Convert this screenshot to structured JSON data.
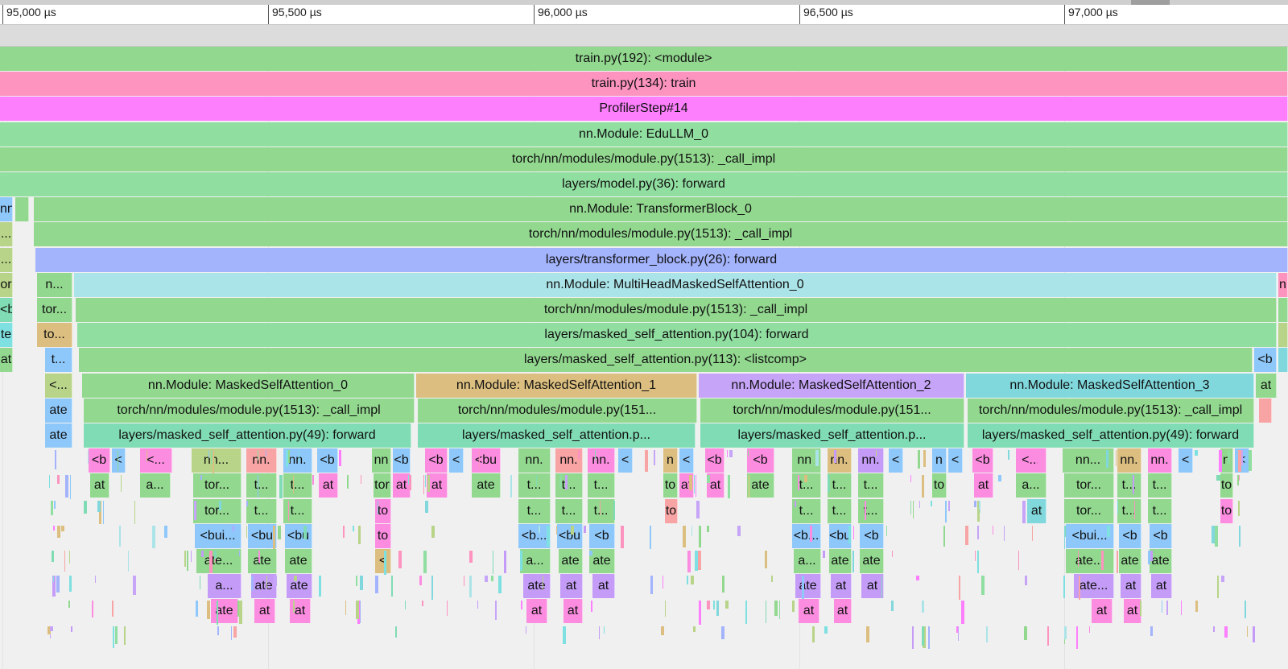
{
  "ruler": {
    "ticks": [
      "95,000 µs",
      "95,500 µs",
      "96,000 µs",
      "96,500 µs",
      "97,000 µs"
    ]
  },
  "colors": {
    "green": "#92d88f",
    "pink": "#fd93bf",
    "magenta": "#fd7ffd",
    "lightgreen": "#90dea0",
    "blue": "#a3b3fc",
    "cyan": "#abe4e8",
    "tan": "#dcbf80",
    "purple": "#c6a4f8",
    "teal": "#80d8dc",
    "mint": "#80dcb4",
    "sky": "#8ec8fa",
    "lime": "#b8d488",
    "salmon": "#f8a4a4",
    "hotpink": "#fb8ce0",
    "violet": "#c49cf8",
    "aqua": "#7ee0e0"
  },
  "flame": [
    {
      "row": 0,
      "l": 0,
      "r": 1600,
      "c": "green",
      "t": "train.py(192): <module>"
    },
    {
      "row": 1,
      "l": 0,
      "r": 1600,
      "c": "pink",
      "t": "train.py(134): train"
    },
    {
      "row": 2,
      "l": 0,
      "r": 1600,
      "c": "magenta",
      "t": "ProfilerStep#14"
    },
    {
      "row": 3,
      "l": 0,
      "r": 1600,
      "c": "lightgreen",
      "t": "nn.Module: EduLLM_0"
    },
    {
      "row": 4,
      "l": 0,
      "r": 1600,
      "c": "green",
      "t": "torch/nn/modules/module.py(1513): _call_impl"
    },
    {
      "row": 5,
      "l": 0,
      "r": 1600,
      "c": "lightgreen",
      "t": "layers/model.py(36): forward"
    },
    {
      "row": 6,
      "l": 0,
      "r": 16,
      "c": "sky",
      "t": "nn."
    },
    {
      "row": 6,
      "l": 19,
      "r": 36,
      "c": "green",
      "t": ""
    },
    {
      "row": 6,
      "l": 42,
      "r": 1600,
      "c": "green",
      "t": "nn.Module: TransformerBlock_0"
    },
    {
      "row": 7,
      "l": 0,
      "r": 16,
      "c": "lime",
      "t": "..."
    },
    {
      "row": 7,
      "l": 42,
      "r": 1600,
      "c": "green",
      "t": "torch/nn/modules/module.py(1513): _call_impl"
    },
    {
      "row": 8,
      "l": 0,
      "r": 16,
      "c": "lime",
      "t": "..."
    },
    {
      "row": 8,
      "l": 44,
      "r": 1600,
      "c": "blue",
      "t": "layers/transformer_block.py(26): forward"
    },
    {
      "row": 9,
      "l": 0,
      "r": 16,
      "c": "lime",
      "t": "or"
    },
    {
      "row": 9,
      "l": 46,
      "r": 90,
      "c": "green",
      "t": "n..."
    },
    {
      "row": 9,
      "l": 92,
      "r": 1586,
      "c": "cyan",
      "t": "nn.Module: MultiHeadMaskedSelfAttention_0"
    },
    {
      "row": 9,
      "l": 1588,
      "r": 1600,
      "c": "pink",
      "t": "n"
    },
    {
      "row": 10,
      "l": 0,
      "r": 16,
      "c": "mint",
      "t": "<b"
    },
    {
      "row": 10,
      "l": 46,
      "r": 90,
      "c": "green",
      "t": "tor..."
    },
    {
      "row": 10,
      "l": 94,
      "r": 1586,
      "c": "green",
      "t": "torch/nn/modules/module.py(1513): _call_impl"
    },
    {
      "row": 10,
      "l": 1588,
      "r": 1600,
      "c": "green",
      "t": ""
    },
    {
      "row": 11,
      "l": 0,
      "r": 16,
      "c": "aqua",
      "t": "te"
    },
    {
      "row": 11,
      "l": 46,
      "r": 90,
      "c": "tan",
      "t": "to..."
    },
    {
      "row": 11,
      "l": 96,
      "r": 1586,
      "c": "lightgreen",
      "t": "layers/masked_self_attention.py(104): forward"
    },
    {
      "row": 11,
      "l": 1588,
      "r": 1600,
      "c": "lime",
      "t": ""
    },
    {
      "row": 12,
      "l": 0,
      "r": 16,
      "c": "green",
      "t": "at"
    },
    {
      "row": 12,
      "l": 56,
      "r": 90,
      "c": "sky",
      "t": "t..."
    },
    {
      "row": 12,
      "l": 98,
      "r": 1556,
      "c": "green",
      "t": "layers/masked_self_attention.py(113): <listcomp>"
    },
    {
      "row": 12,
      "l": 1558,
      "r": 1586,
      "c": "sky",
      "t": "<b"
    },
    {
      "row": 12,
      "l": 1588,
      "r": 1600,
      "c": "teal",
      "t": ""
    },
    {
      "row": 13,
      "l": 56,
      "r": 90,
      "c": "lime",
      "t": "<..."
    },
    {
      "row": 13,
      "l": 102,
      "r": 515,
      "c": "green",
      "t": "nn.Module: MaskedSelfAttention_0"
    },
    {
      "row": 13,
      "l": 517,
      "r": 866,
      "c": "tan",
      "t": "nn.Module: MaskedSelfAttention_1"
    },
    {
      "row": 13,
      "l": 868,
      "r": 1198,
      "c": "purple",
      "t": "nn.Module: MaskedSelfAttention_2"
    },
    {
      "row": 13,
      "l": 1200,
      "r": 1558,
      "c": "teal",
      "t": "nn.Module: MaskedSelfAttention_3"
    },
    {
      "row": 13,
      "l": 1560,
      "r": 1586,
      "c": "green",
      "t": "at"
    },
    {
      "row": 14,
      "l": 56,
      "r": 90,
      "c": "sky",
      "t": "ate"
    },
    {
      "row": 14,
      "l": 104,
      "r": 515,
      "c": "green",
      "t": "torch/nn/modules/module.py(1513): _call_impl"
    },
    {
      "row": 14,
      "l": 519,
      "r": 866,
      "c": "green",
      "t": "torch/nn/modules/module.py(151..."
    },
    {
      "row": 14,
      "l": 870,
      "r": 1198,
      "c": "green",
      "t": "torch/nn/modules/module.py(151..."
    },
    {
      "row": 14,
      "l": 1202,
      "r": 1558,
      "c": "green",
      "t": "torch/nn/modules/module.py(1513): _call_impl"
    },
    {
      "row": 14,
      "l": 1564,
      "r": 1580,
      "c": "salmon",
      "t": ""
    },
    {
      "row": 15,
      "l": 56,
      "r": 90,
      "c": "sky",
      "t": "ate"
    },
    {
      "row": 15,
      "l": 104,
      "r": 511,
      "c": "mint",
      "t": "layers/masked_self_attention.py(49): forward"
    },
    {
      "row": 15,
      "l": 519,
      "r": 864,
      "c": "mint",
      "t": "layers/masked_self_attention.p..."
    },
    {
      "row": 15,
      "l": 870,
      "r": 1198,
      "c": "mint",
      "t": "layers/masked_self_attention.p..."
    },
    {
      "row": 15,
      "l": 1202,
      "r": 1558,
      "c": "mint",
      "t": "layers/masked_self_attention.py(49): forward"
    },
    {
      "row": 16,
      "l": 110,
      "r": 137,
      "c": "hotpink",
      "t": "<b"
    },
    {
      "row": 16,
      "l": 139,
      "r": 156,
      "c": "sky",
      "t": "<"
    },
    {
      "row": 16,
      "l": 174,
      "r": 214,
      "c": "hotpink",
      "t": "<..."
    },
    {
      "row": 16,
      "l": 238,
      "r": 300,
      "c": "lime",
      "t": "nn..."
    },
    {
      "row": 16,
      "l": 306,
      "r": 344,
      "c": "salmon",
      "t": "nn."
    },
    {
      "row": 16,
      "l": 352,
      "r": 388,
      "c": "sky",
      "t": "nn."
    },
    {
      "row": 16,
      "l": 394,
      "r": 420,
      "c": "sky",
      "t": "<b"
    },
    {
      "row": 16,
      "l": 462,
      "r": 486,
      "c": "green",
      "t": "nn"
    },
    {
      "row": 16,
      "l": 488,
      "r": 510,
      "c": "sky",
      "t": "<b"
    },
    {
      "row": 16,
      "l": 528,
      "r": 556,
      "c": "hotpink",
      "t": "<b"
    },
    {
      "row": 16,
      "l": 558,
      "r": 576,
      "c": "sky",
      "t": "<"
    },
    {
      "row": 16,
      "l": 586,
      "r": 622,
      "c": "hotpink",
      "t": "<bu"
    },
    {
      "row": 16,
      "l": 644,
      "r": 684,
      "c": "green",
      "t": "nn."
    },
    {
      "row": 16,
      "l": 690,
      "r": 724,
      "c": "salmon",
      "t": "nn."
    },
    {
      "row": 16,
      "l": 730,
      "r": 764,
      "c": "hotpink",
      "t": "nn."
    },
    {
      "row": 16,
      "l": 768,
      "r": 786,
      "c": "sky",
      "t": "<"
    },
    {
      "row": 16,
      "l": 824,
      "r": 842,
      "c": "tan",
      "t": "n"
    },
    {
      "row": 16,
      "l": 844,
      "r": 862,
      "c": "sky",
      "t": "<"
    },
    {
      "row": 16,
      "l": 876,
      "r": 900,
      "c": "hotpink",
      "t": "<b"
    },
    {
      "row": 16,
      "l": 928,
      "r": 962,
      "c": "hotpink",
      "t": "<b"
    },
    {
      "row": 16,
      "l": 984,
      "r": 1020,
      "c": "green",
      "t": "nn."
    },
    {
      "row": 16,
      "l": 1028,
      "r": 1058,
      "c": "tan",
      "t": "nn."
    },
    {
      "row": 16,
      "l": 1066,
      "r": 1098,
      "c": "violet",
      "t": "nn."
    },
    {
      "row": 16,
      "l": 1104,
      "r": 1122,
      "c": "sky",
      "t": "<"
    },
    {
      "row": 16,
      "l": 1158,
      "r": 1176,
      "c": "sky",
      "t": "n"
    },
    {
      "row": 16,
      "l": 1178,
      "r": 1196,
      "c": "sky",
      "t": "<"
    },
    {
      "row": 16,
      "l": 1208,
      "r": 1234,
      "c": "hotpink",
      "t": "<b"
    },
    {
      "row": 16,
      "l": 1262,
      "r": 1300,
      "c": "hotpink",
      "t": "<..."
    },
    {
      "row": 16,
      "l": 1320,
      "r": 1384,
      "c": "green",
      "t": "nn..."
    },
    {
      "row": 16,
      "l": 1388,
      "r": 1418,
      "c": "tan",
      "t": "nn."
    },
    {
      "row": 16,
      "l": 1426,
      "r": 1456,
      "c": "hotpink",
      "t": "nn."
    },
    {
      "row": 16,
      "l": 1464,
      "r": 1482,
      "c": "sky",
      "t": "<"
    },
    {
      "row": 16,
      "l": 1516,
      "r": 1532,
      "c": "green",
      "t": "n"
    },
    {
      "row": 16,
      "l": 1534,
      "r": 1552,
      "c": "sky",
      "t": "<"
    },
    {
      "row": 17,
      "l": 112,
      "r": 136,
      "c": "green",
      "t": "at"
    },
    {
      "row": 17,
      "l": 174,
      "r": 212,
      "c": "green",
      "t": "a..."
    },
    {
      "row": 17,
      "l": 240,
      "r": 300,
      "c": "green",
      "t": "tor..."
    },
    {
      "row": 17,
      "l": 306,
      "r": 344,
      "c": "green",
      "t": "t..."
    },
    {
      "row": 17,
      "l": 352,
      "r": 388,
      "c": "green",
      "t": "t..."
    },
    {
      "row": 17,
      "l": 396,
      "r": 420,
      "c": "hotpink",
      "t": "at"
    },
    {
      "row": 17,
      "l": 464,
      "r": 486,
      "c": "green",
      "t": "tor"
    },
    {
      "row": 17,
      "l": 488,
      "r": 510,
      "c": "hotpink",
      "t": "at"
    },
    {
      "row": 17,
      "l": 530,
      "r": 556,
      "c": "hotpink",
      "t": "at"
    },
    {
      "row": 17,
      "l": 586,
      "r": 622,
      "c": "green",
      "t": "ate"
    },
    {
      "row": 17,
      "l": 644,
      "r": 684,
      "c": "green",
      "t": "t..."
    },
    {
      "row": 17,
      "l": 690,
      "r": 724,
      "c": "green",
      "t": "t..."
    },
    {
      "row": 17,
      "l": 730,
      "r": 764,
      "c": "green",
      "t": "t..."
    },
    {
      "row": 17,
      "l": 824,
      "r": 842,
      "c": "green",
      "t": "to"
    },
    {
      "row": 17,
      "l": 844,
      "r": 862,
      "c": "hotpink",
      "t": "at"
    },
    {
      "row": 17,
      "l": 878,
      "r": 900,
      "c": "hotpink",
      "t": "at"
    },
    {
      "row": 17,
      "l": 928,
      "r": 962,
      "c": "green",
      "t": "ate"
    },
    {
      "row": 17,
      "l": 984,
      "r": 1020,
      "c": "green",
      "t": "t..."
    },
    {
      "row": 17,
      "l": 1028,
      "r": 1058,
      "c": "green",
      "t": "t..."
    },
    {
      "row": 17,
      "l": 1066,
      "r": 1098,
      "c": "green",
      "t": "t..."
    },
    {
      "row": 17,
      "l": 1158,
      "r": 1176,
      "c": "green",
      "t": "to"
    },
    {
      "row": 17,
      "l": 1210,
      "r": 1234,
      "c": "hotpink",
      "t": "at"
    },
    {
      "row": 17,
      "l": 1262,
      "r": 1300,
      "c": "green",
      "t": "a..."
    },
    {
      "row": 17,
      "l": 1322,
      "r": 1384,
      "c": "green",
      "t": "tor..."
    },
    {
      "row": 17,
      "l": 1388,
      "r": 1418,
      "c": "green",
      "t": "t..."
    },
    {
      "row": 17,
      "l": 1426,
      "r": 1456,
      "c": "green",
      "t": "t..."
    },
    {
      "row": 17,
      "l": 1516,
      "r": 1532,
      "c": "green",
      "t": "to"
    },
    {
      "row": 18,
      "l": 240,
      "r": 300,
      "c": "green",
      "t": "tor..."
    },
    {
      "row": 18,
      "l": 306,
      "r": 344,
      "c": "green",
      "t": "t..."
    },
    {
      "row": 18,
      "l": 352,
      "r": 388,
      "c": "green",
      "t": "t..."
    },
    {
      "row": 18,
      "l": 466,
      "r": 486,
      "c": "hotpink",
      "t": "to"
    },
    {
      "row": 18,
      "l": 644,
      "r": 684,
      "c": "green",
      "t": "t..."
    },
    {
      "row": 18,
      "l": 690,
      "r": 724,
      "c": "green",
      "t": "t..."
    },
    {
      "row": 18,
      "l": 730,
      "r": 764,
      "c": "green",
      "t": "t..."
    },
    {
      "row": 18,
      "l": 826,
      "r": 842,
      "c": "salmon",
      "t": "to"
    },
    {
      "row": 18,
      "l": 984,
      "r": 1020,
      "c": "green",
      "t": "t..."
    },
    {
      "row": 18,
      "l": 1028,
      "r": 1058,
      "c": "green",
      "t": "t..."
    },
    {
      "row": 18,
      "l": 1066,
      "r": 1098,
      "c": "green",
      "t": "t..."
    },
    {
      "row": 18,
      "l": 1276,
      "r": 1300,
      "c": "teal",
      "t": "at"
    },
    {
      "row": 18,
      "l": 1322,
      "r": 1384,
      "c": "green",
      "t": "tor..."
    },
    {
      "row": 18,
      "l": 1388,
      "r": 1418,
      "c": "green",
      "t": "t..."
    },
    {
      "row": 18,
      "l": 1426,
      "r": 1456,
      "c": "green",
      "t": "t..."
    },
    {
      "row": 18,
      "l": 1516,
      "r": 1532,
      "c": "hotpink",
      "t": "to"
    },
    {
      "row": 19,
      "l": 242,
      "r": 300,
      "c": "sky",
      "t": "<bui..."
    },
    {
      "row": 19,
      "l": 308,
      "r": 344,
      "c": "sky",
      "t": "<bu"
    },
    {
      "row": 19,
      "l": 354,
      "r": 388,
      "c": "sky",
      "t": "<bu"
    },
    {
      "row": 19,
      "l": 466,
      "r": 486,
      "c": "hotpink",
      "t": "to"
    },
    {
      "row": 19,
      "l": 644,
      "r": 684,
      "c": "sky",
      "t": "<b..."
    },
    {
      "row": 19,
      "l": 692,
      "r": 724,
      "c": "sky",
      "t": "<bu"
    },
    {
      "row": 19,
      "l": 732,
      "r": 764,
      "c": "sky",
      "t": "<b"
    },
    {
      "row": 19,
      "l": 984,
      "r": 1020,
      "c": "sky",
      "t": "<b..."
    },
    {
      "row": 19,
      "l": 1030,
      "r": 1058,
      "c": "sky",
      "t": "<bu"
    },
    {
      "row": 19,
      "l": 1068,
      "r": 1098,
      "c": "sky",
      "t": "<b"
    },
    {
      "row": 19,
      "l": 1324,
      "r": 1384,
      "c": "sky",
      "t": "<bui..."
    },
    {
      "row": 19,
      "l": 1390,
      "r": 1418,
      "c": "sky",
      "t": "<b"
    },
    {
      "row": 19,
      "l": 1428,
      "r": 1456,
      "c": "sky",
      "t": "<b"
    },
    {
      "row": 20,
      "l": 244,
      "r": 300,
      "c": "green",
      "t": "ate..."
    },
    {
      "row": 20,
      "l": 308,
      "r": 344,
      "c": "green",
      "t": "ate"
    },
    {
      "row": 20,
      "l": 354,
      "r": 388,
      "c": "green",
      "t": "ate"
    },
    {
      "row": 20,
      "l": 466,
      "r": 486,
      "c": "tan",
      "t": "<"
    },
    {
      "row": 20,
      "l": 646,
      "r": 684,
      "c": "green",
      "t": "a..."
    },
    {
      "row": 20,
      "l": 694,
      "r": 724,
      "c": "green",
      "t": "ate"
    },
    {
      "row": 20,
      "l": 732,
      "r": 764,
      "c": "green",
      "t": "ate"
    },
    {
      "row": 20,
      "l": 986,
      "r": 1020,
      "c": "green",
      "t": "a..."
    },
    {
      "row": 20,
      "l": 1030,
      "r": 1058,
      "c": "green",
      "t": "ate"
    },
    {
      "row": 20,
      "l": 1068,
      "r": 1098,
      "c": "green",
      "t": "ate"
    },
    {
      "row": 20,
      "l": 1324,
      "r": 1384,
      "c": "green",
      "t": "ate..."
    },
    {
      "row": 20,
      "l": 1390,
      "r": 1418,
      "c": "green",
      "t": "ate"
    },
    {
      "row": 20,
      "l": 1428,
      "r": 1456,
      "c": "green",
      "t": "ate"
    },
    {
      "row": 21,
      "l": 258,
      "r": 300,
      "c": "violet",
      "t": "a..."
    },
    {
      "row": 21,
      "l": 312,
      "r": 344,
      "c": "violet",
      "t": "ate"
    },
    {
      "row": 21,
      "l": 356,
      "r": 388,
      "c": "violet",
      "t": "ate"
    },
    {
      "row": 21,
      "l": 650,
      "r": 684,
      "c": "violet",
      "t": "ate"
    },
    {
      "row": 21,
      "l": 696,
      "r": 724,
      "c": "violet",
      "t": "at"
    },
    {
      "row": 21,
      "l": 736,
      "r": 764,
      "c": "violet",
      "t": "at"
    },
    {
      "row": 21,
      "l": 988,
      "r": 1020,
      "c": "violet",
      "t": "ate"
    },
    {
      "row": 21,
      "l": 1032,
      "r": 1058,
      "c": "violet",
      "t": "at"
    },
    {
      "row": 21,
      "l": 1070,
      "r": 1098,
      "c": "violet",
      "t": "at"
    },
    {
      "row": 21,
      "l": 1334,
      "r": 1384,
      "c": "violet",
      "t": "ate..."
    },
    {
      "row": 21,
      "l": 1392,
      "r": 1418,
      "c": "violet",
      "t": "at"
    },
    {
      "row": 21,
      "l": 1430,
      "r": 1456,
      "c": "violet",
      "t": "at"
    },
    {
      "row": 22,
      "l": 262,
      "r": 296,
      "c": "hotpink",
      "t": "ate"
    },
    {
      "row": 22,
      "l": 316,
      "r": 342,
      "c": "hotpink",
      "t": "at"
    },
    {
      "row": 22,
      "l": 360,
      "r": 386,
      "c": "hotpink",
      "t": "at"
    },
    {
      "row": 22,
      "l": 654,
      "r": 680,
      "c": "hotpink",
      "t": "at"
    },
    {
      "row": 22,
      "l": 700,
      "r": 724,
      "c": "hotpink",
      "t": "at"
    },
    {
      "row": 22,
      "l": 992,
      "r": 1018,
      "c": "hotpink",
      "t": "at"
    },
    {
      "row": 22,
      "l": 1036,
      "r": 1058,
      "c": "hotpink",
      "t": "at"
    },
    {
      "row": 22,
      "l": 1356,
      "r": 1382,
      "c": "hotpink",
      "t": "at"
    },
    {
      "row": 22,
      "l": 1396,
      "r": 1418,
      "c": "hotpink",
      "t": "at"
    }
  ]
}
